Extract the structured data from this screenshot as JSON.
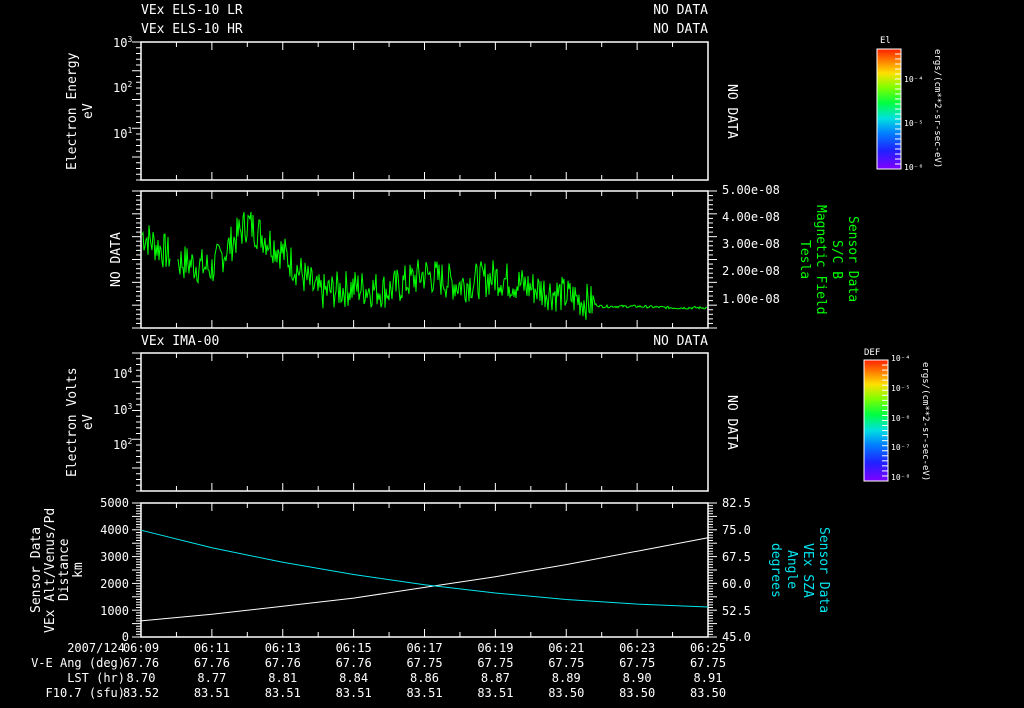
{
  "panel1": {
    "titles": [
      "VEx ELS-10 LR",
      "VEx ELS-10 HR"
    ],
    "status": [
      "NO DATA",
      "NO DATA"
    ],
    "ylabel": [
      "Electron Energy",
      "eV"
    ],
    "yticks": [
      {
        "base": "10",
        "exp": "3"
      },
      {
        "base": "10",
        "exp": "2"
      },
      {
        "base": "10",
        "exp": "1"
      }
    ],
    "right_status": "NO DATA",
    "colorbar": {
      "title": "El",
      "ticks": [
        "10⁻⁴",
        "10⁻⁵",
        "10⁻⁶"
      ],
      "units": "ergs/(cm**2-sr-sec-eV)"
    }
  },
  "panel2": {
    "left_status": "NO DATA",
    "yticks": [
      "5.00e-08",
      "4.00e-08",
      "3.00e-08",
      "2.00e-08",
      "1.00e-08"
    ],
    "ylabel": [
      "Sensor Data",
      "S/C B",
      "Magnetic Field",
      "Tesla"
    ],
    "line_color": "#00ff00"
  },
  "panel3": {
    "title": "VEx IMA-00",
    "status": "NO DATA",
    "ylabel": [
      "Electron Volts",
      "eV"
    ],
    "yticks": [
      {
        "base": "10",
        "exp": "4"
      },
      {
        "base": "10",
        "exp": "3"
      },
      {
        "base": "10",
        "exp": "2"
      }
    ],
    "right_status": "NO DATA",
    "colorbar": {
      "title": "DEF",
      "ticks": [
        "10⁻⁴",
        "10⁻⁵",
        "10⁻⁶",
        "10⁻⁷",
        "10⁻⁸"
      ],
      "units": "ergs/(cm**2-sr-sec-eV)"
    }
  },
  "panel4": {
    "ylabel_left": [
      "Sensor Data",
      "VEx Alt/Venus/Pd",
      "Distance",
      "km"
    ],
    "yticks_left": [
      "5000",
      "4000",
      "3000",
      "2000",
      "1000",
      "0"
    ],
    "yticks_right": [
      "82.5",
      "75.0",
      "67.5",
      "60.0",
      "52.5",
      "45.0"
    ],
    "ylabel_right": [
      "Sensor Data",
      "VEx SZA",
      "Angle",
      "degrees"
    ],
    "alt_color": "#ffffff",
    "sza_color": "#00e5ee"
  },
  "footer": {
    "row_labels": [
      "2007/124",
      "V-E Ang (deg)",
      "LST (hr)",
      "F10.7 (sfu)"
    ],
    "times": [
      "06:09",
      "06:11",
      "06:13",
      "06:15",
      "06:17",
      "06:19",
      "06:21",
      "06:23",
      "06:25"
    ],
    "ve_ang": [
      "67.76",
      "67.76",
      "67.76",
      "67.76",
      "67.75",
      "67.75",
      "67.75",
      "67.75",
      "67.75"
    ],
    "lst": [
      "8.70",
      "8.77",
      "8.81",
      "8.84",
      "8.86",
      "8.87",
      "8.89",
      "8.90",
      "8.91"
    ],
    "f107": [
      "83.52",
      "83.51",
      "83.51",
      "83.51",
      "83.51",
      "83.51",
      "83.50",
      "83.50",
      "83.50"
    ]
  },
  "chart_data": [
    {
      "type": "heatmap",
      "title": "VEx ELS-10 LR / VEx ELS-10 HR",
      "ylabel": "Electron Energy (eV)",
      "yscale": "log",
      "ylim": [
        1,
        1000
      ],
      "x": [
        "06:09",
        "06:11",
        "06:13",
        "06:15",
        "06:17",
        "06:19",
        "06:21",
        "06:23",
        "06:25"
      ],
      "status": "NO DATA",
      "colorbar": {
        "label": "El ergs/(cm**2-sr-sec-eV)",
        "range": [
          "1e-6",
          "1e-4"
        ]
      }
    },
    {
      "type": "line",
      "title": "Sensor Data S/C B Magnetic Field",
      "ylabel": "Tesla",
      "ylim": [
        0,
        5e-08
      ],
      "x": [
        "06:09",
        "06:10",
        "06:11",
        "06:12",
        "06:13",
        "06:14",
        "06:15",
        "06:16",
        "06:17",
        "06:18",
        "06:19",
        "06:20",
        "06:21",
        "06:22",
        "06:23",
        "06:24",
        "06:25"
      ],
      "series": [
        {
          "name": "S/C B",
          "values": [
            3.5e-08,
            2.5e-08,
            2.2e-08,
            3.9e-08,
            2.8e-08,
            1.3e-08,
            1.5e-08,
            1.4e-08,
            2e-08,
            1.6e-08,
            1.9e-08,
            1.5e-08,
            1.2e-08,
            8e-09,
            8e-09,
            7.5e-09,
            7.5e-09
          ]
        }
      ],
      "left_status": "NO DATA"
    },
    {
      "type": "heatmap",
      "title": "VEx IMA-00",
      "ylabel": "Electron Volts (eV)",
      "yscale": "log",
      "ylim": [
        10,
        30000
      ],
      "status": "NO DATA",
      "colorbar": {
        "label": "DEF ergs/(cm**2-sr-sec-eV)",
        "range": [
          "1e-8",
          "1e-4"
        ]
      }
    },
    {
      "type": "line",
      "title": "Sensor Data VEx Alt / VEx SZA",
      "x": [
        "06:09",
        "06:11",
        "06:13",
        "06:15",
        "06:17",
        "06:19",
        "06:21",
        "06:23",
        "06:25"
      ],
      "series": [
        {
          "name": "VEx Alt/Venus/Pd Distance (km)",
          "axis": "left",
          "values": [
            600,
            850,
            1150,
            1450,
            1850,
            2250,
            2700,
            3200,
            3700
          ]
        },
        {
          "name": "VEx SZA Angle (degrees)",
          "axis": "right",
          "values": [
            74.9,
            70.0,
            65.9,
            62.5,
            59.6,
            57.3,
            55.5,
            54.2,
            53.4
          ]
        }
      ],
      "ylim_left": [
        0,
        5000
      ],
      "ylim_right": [
        45.0,
        82.5
      ]
    }
  ]
}
